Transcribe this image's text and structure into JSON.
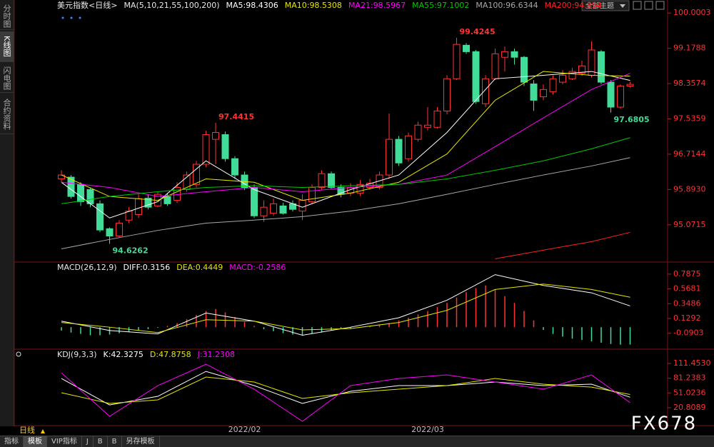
{
  "chart_data": [
    {
      "type": "candlestick",
      "title": "美元指数<日线>",
      "subtitle": "MA(5,10,21,55,100,200)",
      "categories": [
        null,
        null,
        null,
        null,
        null,
        null,
        null,
        null,
        null,
        null,
        null,
        null,
        null,
        null,
        null,
        null,
        null,
        null,
        null,
        "2022/02",
        null,
        null,
        null,
        null,
        null,
        null,
        null,
        null,
        null,
        null,
        null,
        null,
        null,
        null,
        null,
        null,
        null,
        null,
        "2022/03",
        null,
        null,
        null,
        null,
        null,
        null,
        null,
        null,
        null,
        null,
        null,
        null,
        null,
        null,
        null,
        null,
        null,
        null,
        null,
        null,
        null
      ],
      "open": [
        96.14,
        96.18,
        96.01,
        95.89,
        95.56,
        94.98,
        94.81,
        95.18,
        95.31,
        95.69,
        95.51,
        95.73,
        95.64,
        95.89,
        96.01,
        96.48,
        97.06,
        97.17,
        96.61,
        96.23,
        95.94,
        95.28,
        95.34,
        95.51,
        95.56,
        95.39,
        95.61,
        95.94,
        96.26,
        95.94,
        95.81,
        95.81,
        95.94,
        95.94,
        96.23,
        97.06,
        96.61,
        97.06,
        97.34,
        97.34,
        97.72,
        98.47,
        99.25,
        99.1,
        97.89,
        98.47,
        98.97,
        99.1,
        98.97,
        98.35,
        98.05,
        98.17,
        98.39,
        98.47,
        98.6,
        98.55,
        99.1,
        98.39,
        97.81,
        98.3
      ],
      "high": [
        96.34,
        96.23,
        96.06,
        95.94,
        95.64,
        95.01,
        95.18,
        95.48,
        95.78,
        95.78,
        95.84,
        95.81,
        96.06,
        96.31,
        96.56,
        97.26,
        97.4415,
        97.24,
        96.67,
        96.31,
        96.01,
        95.64,
        95.68,
        95.58,
        95.64,
        95.78,
        96.01,
        96.34,
        96.31,
        96.01,
        96.04,
        96.11,
        96.14,
        96.31,
        97.66,
        97.14,
        97.22,
        97.47,
        97.81,
        97.81,
        98.55,
        99.4245,
        99.3,
        99.14,
        98.55,
        99.17,
        99.22,
        99.17,
        99.0,
        98.44,
        98.34,
        98.55,
        98.67,
        98.72,
        98.89,
        99.34,
        99.14,
        98.44,
        98.34,
        98.4
      ],
      "low": [
        96.06,
        95.68,
        95.51,
        95.48,
        94.9,
        94.6262,
        94.78,
        95.11,
        95.23,
        95.43,
        95.48,
        95.51,
        95.58,
        95.84,
        95.94,
        96.41,
        96.48,
        96.54,
        96.14,
        95.88,
        95.23,
        95.14,
        95.28,
        95.31,
        95.38,
        95.18,
        95.56,
        95.88,
        95.89,
        95.71,
        95.74,
        95.74,
        95.89,
        95.89,
        96.14,
        96.44,
        96.54,
        97.01,
        97.27,
        97.31,
        97.64,
        98.44,
        99.05,
        97.89,
        97.81,
        98.44,
        98.64,
        98.8,
        98.3,
        97.72,
        97.97,
        98.1,
        98.34,
        98.44,
        98.54,
        98.5,
        98.34,
        97.6805,
        97.77,
        98.27
      ],
      "close": [
        96.23,
        95.73,
        95.61,
        95.56,
        94.95,
        94.81,
        95.11,
        95.39,
        95.68,
        95.48,
        95.78,
        95.56,
        95.94,
        96.23,
        96.48,
        97.17,
        97.22,
        96.61,
        96.23,
        95.94,
        95.28,
        95.48,
        95.56,
        95.34,
        95.43,
        95.64,
        95.94,
        96.26,
        95.94,
        95.78,
        95.94,
        96.01,
        96.04,
        96.23,
        97.06,
        96.51,
        97.14,
        97.39,
        97.39,
        97.72,
        98.47,
        99.27,
        99.1,
        97.94,
        98.47,
        99.05,
        99.1,
        98.97,
        98.39,
        97.97,
        98.22,
        98.47,
        98.55,
        98.64,
        98.77,
        99.14,
        98.39,
        97.81,
        98.3,
        98.34
      ],
      "up_color": "#ff3232",
      "down_color": "#40dc98",
      "extreme_labels": [
        {
          "series": "high",
          "index": 16
        },
        {
          "series": "high",
          "index": 41
        },
        {
          "series": "low",
          "index": 5
        },
        {
          "series": "low",
          "index": 57
        }
      ],
      "ylim": [
        94.22,
        100.27
      ],
      "yticks": [
        100.0003,
        99.1788,
        98.3574,
        97.5359,
        96.7144,
        {
          "value": 95.893,
          "label": "95.8930"
        },
        95.0715
      ],
      "series": [
        {
          "name": "MA5:98.4306",
          "color": "#ffffff",
          "x": [
            0,
            5,
            10,
            15,
            20,
            25,
            30,
            35,
            40,
            45,
            50,
            55,
            59
          ],
          "values": [
            96.06,
            95.23,
            95.61,
            96.56,
            95.89,
            95.48,
            95.89,
            96.23,
            97.22,
            98.47,
            98.55,
            98.64,
            98.4306
          ]
        },
        {
          "name": "MA10:98.5308",
          "color": "#e6e600",
          "x": [
            0,
            5,
            10,
            15,
            20,
            25,
            30,
            35,
            40,
            45,
            50,
            55,
            59
          ],
          "values": [
            96.23,
            95.73,
            95.64,
            96.14,
            96.06,
            95.64,
            95.81,
            96.06,
            96.72,
            97.97,
            98.64,
            98.55,
            98.5308
          ]
        },
        {
          "name": "MA21:98.5967",
          "color": "#ff00ff",
          "x": [
            0,
            5,
            10,
            15,
            20,
            25,
            30,
            35,
            40,
            45,
            50,
            55,
            59
          ],
          "values": [
            96.06,
            95.94,
            95.73,
            95.84,
            95.94,
            95.84,
            95.94,
            96.01,
            96.23,
            96.89,
            97.56,
            98.22,
            98.5967
          ]
        },
        {
          "name": "MA55:97.1002",
          "color": "#00c800",
          "x": [
            0,
            5,
            10,
            15,
            20,
            25,
            30,
            35,
            40,
            45,
            50,
            55,
            59
          ],
          "values": [
            95.56,
            95.73,
            95.84,
            95.94,
            95.98,
            95.94,
            95.98,
            96.01,
            96.14,
            96.34,
            96.56,
            96.84,
            97.1002
          ]
        },
        {
          "name": "MA100:96.6344",
          "color": "#a8a8a8",
          "x": [
            0,
            5,
            10,
            15,
            20,
            25,
            30,
            35,
            40,
            45,
            50,
            55,
            59
          ],
          "values": [
            94.51,
            94.73,
            94.94,
            95.11,
            95.18,
            95.26,
            95.39,
            95.56,
            95.78,
            96.01,
            96.23,
            96.44,
            96.6344
          ]
        },
        {
          "name": "MA200:94.894",
          "color": "#ff2020",
          "x": [
            45,
            50,
            55,
            59
          ],
          "values": [
            94.28,
            94.48,
            94.68,
            94.894
          ]
        }
      ]
    },
    {
      "type": "combo",
      "title": "MACD(26,12,9)",
      "ylim": [
        -0.316,
        0.956
      ],
      "yticks": [
        0.7875,
        0.5681,
        0.3486,
        0.1292,
        -0.0903
      ],
      "series": [
        {
          "name": "DIFF:0.3156",
          "color": "#ffffff",
          "x": [
            0,
            5,
            10,
            15,
            20,
            25,
            30,
            35,
            40,
            45,
            50,
            55,
            59
          ],
          "values": [
            0.09,
            -0.05,
            -0.1,
            0.21,
            0.09,
            -0.12,
            0.0,
            0.14,
            0.4,
            0.78,
            0.62,
            0.51,
            0.3156
          ]
        },
        {
          "name": "DEA:0.4449",
          "color": "#e6e600",
          "x": [
            0,
            5,
            10,
            15,
            20,
            25,
            30,
            35,
            40,
            45,
            50,
            55,
            59
          ],
          "values": [
            0.07,
            0.0,
            -0.08,
            0.11,
            0.09,
            -0.04,
            -0.02,
            0.07,
            0.25,
            0.56,
            0.64,
            0.56,
            0.4449
          ]
        },
        {
          "name": "MACD:-0.2586",
          "color": "#ff00ff",
          "kind": "bar",
          "up_color": "#ff3232",
          "down_color": "#40dc98",
          "values": [
            -0.05,
            -0.08,
            -0.1,
            -0.12,
            -0.12,
            -0.11,
            -0.09,
            -0.07,
            -0.05,
            -0.03,
            -0.01,
            0.02,
            0.06,
            0.12,
            0.18,
            0.24,
            0.27,
            0.22,
            0.15,
            0.08,
            0.02,
            -0.03,
            -0.06,
            -0.09,
            -0.11,
            -0.12,
            -0.1,
            -0.08,
            -0.05,
            -0.03,
            -0.02,
            0.0,
            0.02,
            0.03,
            0.06,
            0.1,
            0.14,
            0.19,
            0.24,
            0.3,
            0.36,
            0.44,
            0.52,
            0.58,
            0.62,
            0.56,
            0.46,
            0.36,
            0.24,
            0.1,
            -0.04,
            -0.1,
            -0.14,
            -0.17,
            -0.19,
            -0.21,
            -0.23,
            -0.25,
            -0.26,
            -0.2586
          ]
        }
      ]
    },
    {
      "type": "line",
      "title": "KDJ(9,3,3)",
      "ylim": [
        -14.22,
        139.19
      ],
      "yticks": [
        {
          "value": 111.453,
          "label": "111.4530"
        },
        81.2383,
        51.0236,
        20.8089
      ],
      "series": [
        {
          "name": "K:42.3275",
          "color": "#ffffff",
          "x": [
            0,
            5,
            10,
            15,
            20,
            25,
            30,
            35,
            40,
            45,
            50,
            55,
            59
          ],
          "values": [
            80.7,
            26.6,
            44.2,
            95.2,
            66.1,
            29.6,
            54.4,
            66.1,
            66.1,
            73.4,
            66.1,
            69.0,
            42.3275
          ]
        },
        {
          "name": "D:47.8758",
          "color": "#e6e600",
          "x": [
            0,
            5,
            10,
            15,
            20,
            25,
            30,
            35,
            40,
            45,
            50,
            55,
            59
          ],
          "values": [
            51.5,
            29.6,
            36.9,
            83.6,
            73.4,
            39.8,
            51.5,
            58.8,
            66.1,
            80.7,
            69.0,
            63.1,
            47.8758
          ]
        },
        {
          "name": "J:31.2308",
          "color": "#ff00ff",
          "x": [
            0,
            5,
            10,
            15,
            20,
            25,
            30,
            35,
            40,
            45,
            50,
            55,
            59
          ],
          "values": [
            92.3,
            3.3,
            66.1,
            109.8,
            58.8,
            -6.9,
            66.1,
            80.7,
            88.0,
            73.4,
            58.8,
            88.0,
            31.2308
          ]
        }
      ]
    }
  ],
  "ui": {
    "sidebar": [
      "分时图",
      "K线图",
      "闪电图",
      "合约资料"
    ],
    "theme_button": "全部主题",
    "period": "日线",
    "tabs": [
      "指标",
      "模板",
      "VIP指标",
      "J",
      "B",
      "B",
      "另存模板"
    ],
    "watermark": "FX678"
  }
}
